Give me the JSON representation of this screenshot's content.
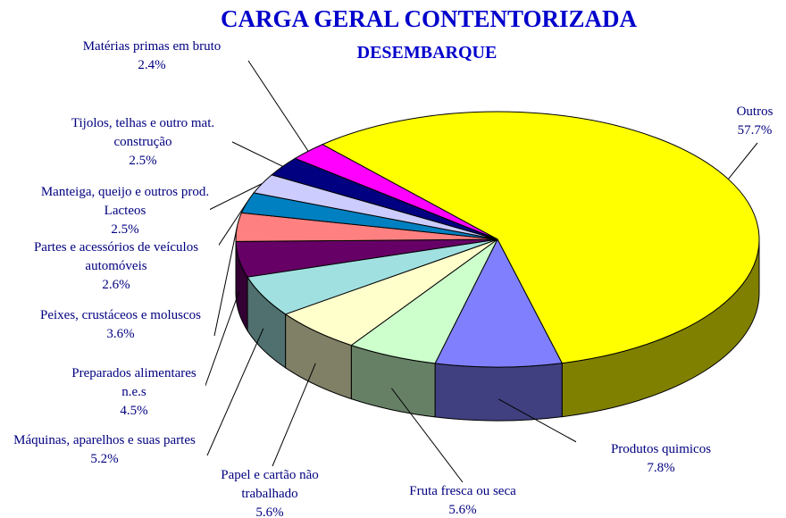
{
  "chart_data": {
    "type": "pie3d",
    "title": "CARGA GERAL CONTENTORIZADA",
    "subtitle": "DESEMBARQUE",
    "categories": [
      "Outros",
      "Produtos quimicos",
      "Fruta fresca ou seca",
      "Papel e cartão não trabalhado",
      "Máquinas, aparelhos e suas partes",
      "Preparados alimentares n.e.s",
      "Peixes, crustáceos e moluscos",
      "Partes e acessórios de veículos automóveis",
      "Manteiga, queijo e outros prod. Lacteos",
      "Tijolos, telhas e outro mat. construção",
      "Matérias primas em bruto"
    ],
    "values": [
      57.7,
      7.8,
      5.6,
      5.6,
      5.2,
      4.5,
      3.6,
      2.6,
      2.5,
      2.5,
      2.4
    ],
    "value_labels": [
      "57.7%",
      "7.8%",
      "5.6%",
      "5.6%",
      "5.2%",
      "4.5%",
      "3.6%",
      "2.6%",
      "2.5%",
      "2.5%",
      "2.4%"
    ],
    "colors": [
      "#ffff00",
      "#8080ff",
      "#ccffcc",
      "#ffffcc",
      "#a0e0e0",
      "#660066",
      "#ff8080",
      "#0080c0",
      "#ccccff",
      "#000080",
      "#ff00ff"
    ]
  }
}
